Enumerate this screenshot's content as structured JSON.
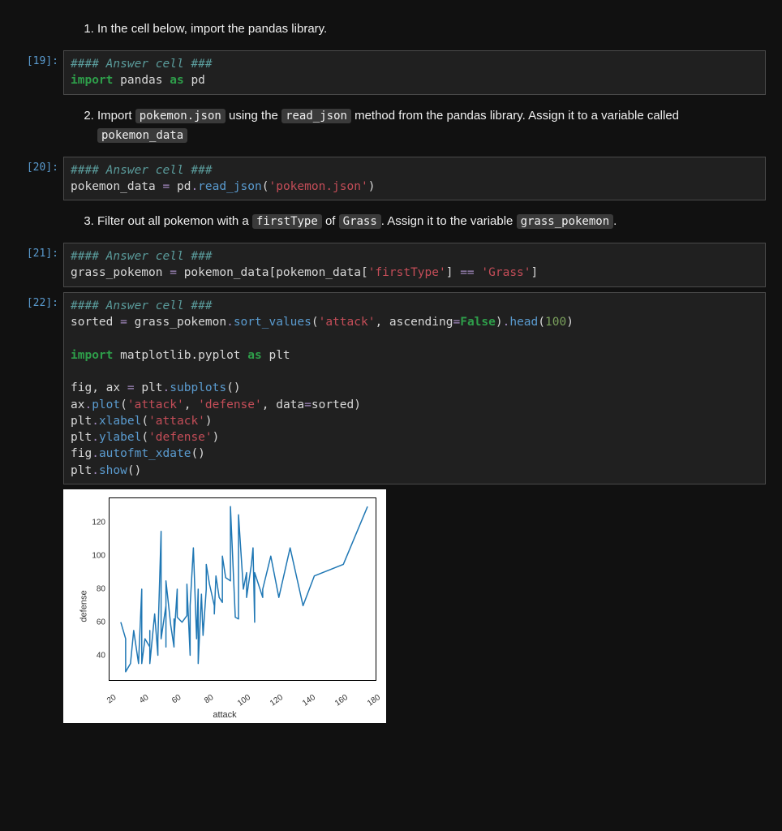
{
  "markdown": {
    "q1": "In the cell below, import the pandas library.",
    "q2_pre": "Import ",
    "q2_c1": "pokemon.json",
    "q2_mid1": " using the ",
    "q2_c2": "read_json",
    "q2_mid2": " method from the pandas library. Assign it to a variable called ",
    "q2_c3": "pokemon_data",
    "q3_pre": "Filter out all pokemon with a ",
    "q3_c1": "firstType",
    "q3_mid1": " of ",
    "q3_c2": "Grass",
    "q3_mid2": ". Assign it to the variable ",
    "q3_c3": "grass_pokemon",
    "q3_post": "."
  },
  "cells": {
    "c19": {
      "prompt": "[19]:",
      "comment": "#### Answer cell ###",
      "t": {
        "import": "import",
        "pandas": "pandas",
        "as": "as",
        "pd": "pd"
      }
    },
    "c20": {
      "prompt": "[20]:",
      "comment": "#### Answer cell ###",
      "t": {
        "v": "pokemon_data",
        "eq": "=",
        "pd": "pd",
        "dot": ".",
        "fn": "read_json",
        "lp": "(",
        "s": "'pokemon.json'",
        "rp": ")"
      }
    },
    "c21": {
      "prompt": "[21]:",
      "comment": "#### Answer cell ###",
      "t": {
        "v": "grass_pokemon",
        "eq": "=",
        "pd": "pokemon_data",
        "lb": "[",
        "pd2": "pokemon_data",
        "lb2": "[",
        "s1": "'firstType'",
        "rb2": "]",
        "eqeq": "==",
        "s2": "'Grass'",
        "rb": "]"
      }
    },
    "c22": {
      "prompt": "[22]:",
      "comment": "#### Answer cell ###",
      "l2": {
        "v": "sorted",
        "eq": "=",
        "gp": "grass_pokemon",
        "dot": ".",
        "sv": "sort_values",
        "lp": "(",
        "s1": "'attack'",
        "c": ",",
        "asc": "ascending",
        "eq2": "=",
        "f": "False",
        "rp": ")",
        "dot2": ".",
        "hd": "head",
        "lp2": "(",
        "n": "100",
        "rp2": ")"
      },
      "l4": {
        "import": "import",
        "mpl": "matplotlib.pyplot",
        "as": "as",
        "plt": "plt"
      },
      "l6": {
        "fig": "fig",
        "c": ",",
        "ax": "ax",
        "eq": "=",
        "plt": "plt",
        "dot": ".",
        "sp": "subplots",
        "lp": "(",
        "rp": ")"
      },
      "l7": {
        "ax": "ax",
        "dot": ".",
        "pl": "plot",
        "lp": "(",
        "s1": "'attack'",
        "c": ",",
        "s2": "'defense'",
        "c2": ",",
        "data": "data",
        "eq": "=",
        "srt": "sorted",
        "rp": ")"
      },
      "l8": {
        "plt": "plt",
        "dot": ".",
        "xl": "xlabel",
        "lp": "(",
        "s": "'attack'",
        "rp": ")"
      },
      "l9": {
        "plt": "plt",
        "dot": ".",
        "yl": "ylabel",
        "lp": "(",
        "s": "'defense'",
        "rp": ")"
      },
      "l10": {
        "fig": "fig",
        "dot": ".",
        "af": "autofmt_xdate",
        "lp": "(",
        "rp": ")"
      },
      "l11": {
        "plt": "plt",
        "dot": ".",
        "sh": "show",
        "lp": "(",
        "rp": ")"
      }
    }
  },
  "chart": {
    "type": "line",
    "xlabel": "attack",
    "ylabel": "defense",
    "xlim": [
      20,
      185
    ],
    "ylim": [
      25,
      135
    ],
    "xticks": [
      20,
      40,
      60,
      80,
      100,
      120,
      140,
      160,
      180
    ],
    "yticks": [
      40,
      60,
      80,
      100,
      120
    ],
    "line_color": "#1f77b4",
    "line_width": 1.5,
    "background_color": "#ffffff",
    "axis_color": "#000000",
    "tick_fontsize": 10,
    "label_fontsize": 11,
    "data": [
      [
        27,
        60
      ],
      [
        30,
        50
      ],
      [
        30,
        30
      ],
      [
        33,
        35
      ],
      [
        35,
        55
      ],
      [
        38,
        35
      ],
      [
        40,
        80
      ],
      [
        40,
        35
      ],
      [
        42,
        50
      ],
      [
        45,
        45
      ],
      [
        45,
        55
      ],
      [
        45,
        35
      ],
      [
        48,
        65
      ],
      [
        50,
        40
      ],
      [
        50,
        50
      ],
      [
        52,
        115
      ],
      [
        52,
        50
      ],
      [
        55,
        70
      ],
      [
        55,
        50
      ],
      [
        55,
        45
      ],
      [
        55,
        85
      ],
      [
        58,
        58
      ],
      [
        60,
        45
      ],
      [
        60,
        62
      ],
      [
        60,
        50
      ],
      [
        62,
        80
      ],
      [
        62,
        63
      ],
      [
        65,
        60
      ],
      [
        65,
        60
      ],
      [
        68,
        64
      ],
      [
        68,
        83
      ],
      [
        70,
        40
      ],
      [
        70,
        65
      ],
      [
        70,
        70
      ],
      [
        72,
        105
      ],
      [
        74,
        50
      ],
      [
        75,
        80
      ],
      [
        75,
        35
      ],
      [
        77,
        77
      ],
      [
        78,
        52
      ],
      [
        80,
        80
      ],
      [
        80,
        95
      ],
      [
        82,
        83
      ],
      [
        85,
        70
      ],
      [
        85,
        65
      ],
      [
        86,
        88
      ],
      [
        88,
        75
      ],
      [
        90,
        72
      ],
      [
        90,
        100
      ],
      [
        92,
        87
      ],
      [
        95,
        85
      ],
      [
        95,
        130
      ],
      [
        98,
        63
      ],
      [
        100,
        62
      ],
      [
        100,
        100
      ],
      [
        100,
        125
      ],
      [
        103,
        80
      ],
      [
        105,
        90
      ],
      [
        105,
        75
      ],
      [
        108,
        95
      ],
      [
        109,
        105
      ],
      [
        110,
        60
      ],
      [
        110,
        90
      ],
      [
        115,
        75
      ],
      [
        115,
        80
      ],
      [
        120,
        100
      ],
      [
        125,
        75
      ],
      [
        132,
        105
      ],
      [
        140,
        70
      ],
      [
        147,
        88
      ],
      [
        165,
        95
      ],
      [
        180,
        130
      ]
    ]
  }
}
